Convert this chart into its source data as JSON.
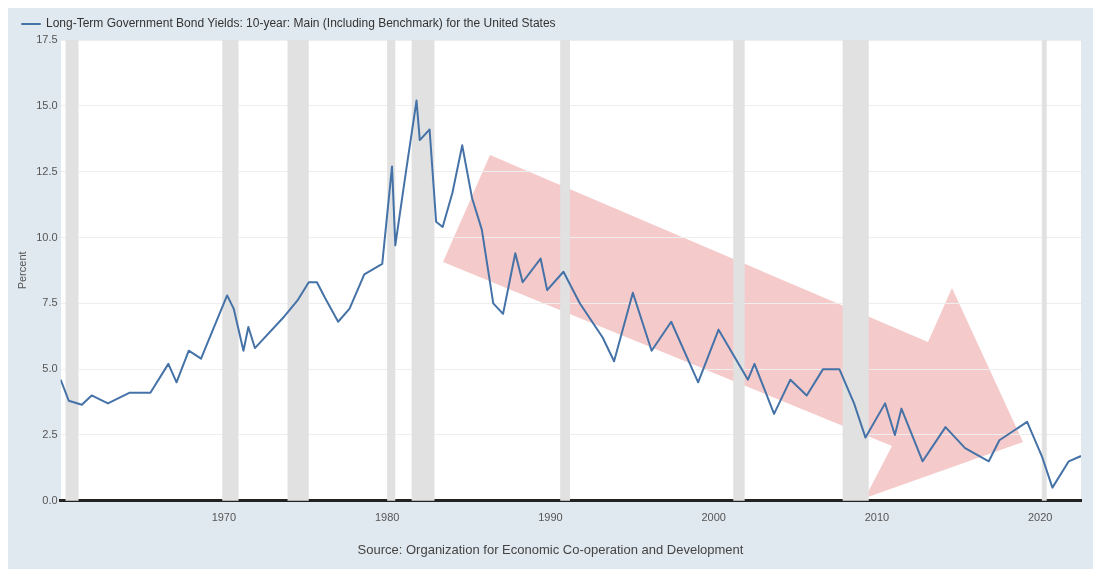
{
  "chart_data": {
    "type": "line",
    "ylabel": "Percent",
    "legend": "top left",
    "grid": "y",
    "marker": "none",
    "line_style": "solid",
    "xlim": [
      1960,
      2022.5
    ],
    "xticks": [
      1970,
      1980,
      1990,
      2000,
      2010,
      2020
    ],
    "ylim": [
      0,
      17.5
    ],
    "yticks": [
      {
        "value": 0,
        "label": "0.0"
      },
      {
        "value": 2.5,
        "label": "2.5"
      },
      {
        "value": 5,
        "label": "5.0"
      },
      {
        "value": 7.5,
        "label": "7.5"
      },
      {
        "value": 10,
        "label": "10.0"
      },
      {
        "value": 12.5,
        "label": "12.5"
      },
      {
        "value": 15,
        "label": "15.0"
      },
      {
        "value": 17.5,
        "label": "17.5"
      }
    ],
    "series": [
      {
        "name": "Long-Term Government Bond Yields: 10-year: Main (Including Benchmark) for the United States",
        "color": "#4572a7",
        "x": [
          1960.0,
          1960.5,
          1961.3,
          1961.9,
          1962.9,
          1964.2,
          1965.5,
          1966.6,
          1967.1,
          1967.85,
          1968.6,
          1969.8,
          1970.2,
          1970.6,
          1971.2,
          1971.5,
          1971.9,
          1973.7,
          1974.5,
          1975.2,
          1975.7,
          1976.2,
          1977.0,
          1977.7,
          1978.6,
          1979.7,
          1980.3,
          1980.5,
          1981.2,
          1981.8,
          1982.0,
          1982.6,
          1983.0,
          1983.4,
          1984.0,
          1984.6,
          1985.2,
          1985.8,
          1986.5,
          1987.1,
          1987.85,
          1988.3,
          1989.4,
          1989.8,
          1990.8,
          1991.8,
          1993.2,
          1993.9,
          1995.05,
          1996.2,
          1997.4,
          1999.05,
          2000.3,
          2002.1,
          2002.5,
          2003.7,
          2004.7,
          2005.7,
          2006.7,
          2007.7,
          2008.6,
          2009.3,
          2010.5,
          2011.1,
          2011.5,
          2012.8,
          2014.2,
          2015.4,
          2016.85,
          2017.5,
          2019.2,
          2020.1,
          2020.75,
          2021.75,
          2022.5
        ],
        "values": [
          4.6,
          3.8,
          3.65,
          4.0,
          3.7,
          4.1,
          4.1,
          5.2,
          4.5,
          5.7,
          5.4,
          7.2,
          7.8,
          7.3,
          5.7,
          6.6,
          5.8,
          7.0,
          7.6,
          8.3,
          8.3,
          7.7,
          6.8,
          7.3,
          8.6,
          9.0,
          12.7,
          9.7,
          12.7,
          15.2,
          13.7,
          14.1,
          10.6,
          10.4,
          11.7,
          13.5,
          11.5,
          10.3,
          7.5,
          7.1,
          9.4,
          8.3,
          9.2,
          8.0,
          8.7,
          7.5,
          6.2,
          5.3,
          7.9,
          5.7,
          6.8,
          4.5,
          6.5,
          4.6,
          5.2,
          3.3,
          4.6,
          4.0,
          5.0,
          5.0,
          3.7,
          2.4,
          3.7,
          2.5,
          3.5,
          1.5,
          2.8,
          2.0,
          1.5,
          2.3,
          3.0,
          1.7,
          0.5,
          1.5,
          1.7
        ]
      }
    ],
    "bands": [
      {
        "axis": "x",
        "from": 1960.3,
        "to": 1961.1,
        "color": "#e1e1e1"
      },
      {
        "axis": "x",
        "from": 1969.9,
        "to": 1970.9,
        "color": "#e1e1e1"
      },
      {
        "axis": "x",
        "from": 1973.9,
        "to": 1975.2,
        "color": "#e1e1e1"
      },
      {
        "axis": "x",
        "from": 1980.0,
        "to": 1980.5,
        "color": "#e1e1e1"
      },
      {
        "axis": "x",
        "from": 1981.5,
        "to": 1982.9,
        "color": "#e1e1e1"
      },
      {
        "axis": "x",
        "from": 1990.6,
        "to": 1991.2,
        "color": "#e1e1e1"
      },
      {
        "axis": "x",
        "from": 2001.2,
        "to": 2001.9,
        "color": "#e1e1e1"
      },
      {
        "axis": "x",
        "from": 2007.9,
        "to": 2009.5,
        "color": "#e1e1e1"
      },
      {
        "axis": "x",
        "from": 2020.1,
        "to": 2020.4,
        "color": "#e1e1e1"
      }
    ],
    "annotations": [
      "Source: Organization for Economic Co-operation and Development"
    ]
  }
}
